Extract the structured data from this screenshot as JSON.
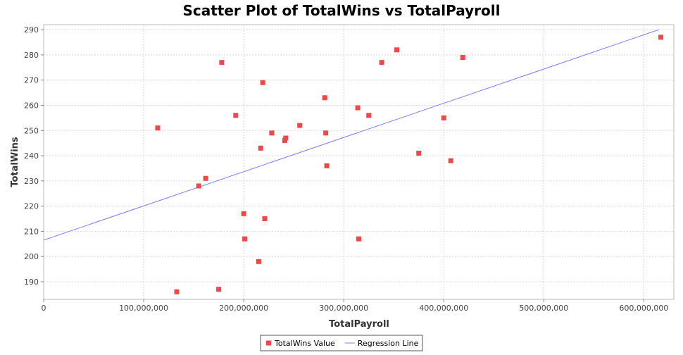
{
  "chart_data": {
    "type": "scatter",
    "title": "Scatter Plot of TotalWins vs TotalPayroll",
    "xlabel": "TotalPayroll",
    "ylabel": "TotalWins",
    "xlim": [
      0,
      630000000
    ],
    "ylim": [
      183,
      292
    ],
    "x_ticks": [
      0,
      100000000,
      200000000,
      300000000,
      400000000,
      500000000,
      600000000
    ],
    "x_tick_labels": [
      "0",
      "100,000,000",
      "200,000,000",
      "300,000,000",
      "400,000,000",
      "500,000,000",
      "600,000,000"
    ],
    "y_ticks": [
      190,
      200,
      210,
      220,
      230,
      240,
      250,
      260,
      270,
      280,
      290
    ],
    "y_tick_labels": [
      "190",
      "200",
      "210",
      "220",
      "230",
      "240",
      "250",
      "260",
      "270",
      "280",
      "290"
    ],
    "grid": true,
    "legend_position": "bottom-center",
    "series": [
      {
        "name": "TotalWins Value",
        "kind": "points",
        "color": "#f04848",
        "points": [
          {
            "x": 114000000,
            "y": 251
          },
          {
            "x": 133000000,
            "y": 186
          },
          {
            "x": 155000000,
            "y": 228
          },
          {
            "x": 162000000,
            "y": 231
          },
          {
            "x": 175000000,
            "y": 187
          },
          {
            "x": 178000000,
            "y": 277
          },
          {
            "x": 192000000,
            "y": 256
          },
          {
            "x": 200000000,
            "y": 217
          },
          {
            "x": 201000000,
            "y": 207
          },
          {
            "x": 215000000,
            "y": 198
          },
          {
            "x": 217000000,
            "y": 243
          },
          {
            "x": 219000000,
            "y": 269
          },
          {
            "x": 221000000,
            "y": 215
          },
          {
            "x": 228000000,
            "y": 249
          },
          {
            "x": 241000000,
            "y": 246
          },
          {
            "x": 242000000,
            "y": 247
          },
          {
            "x": 256000000,
            "y": 252
          },
          {
            "x": 281000000,
            "y": 263
          },
          {
            "x": 282000000,
            "y": 249
          },
          {
            "x": 283000000,
            "y": 236
          },
          {
            "x": 314000000,
            "y": 259
          },
          {
            "x": 315000000,
            "y": 207
          },
          {
            "x": 325000000,
            "y": 256
          },
          {
            "x": 338000000,
            "y": 277
          },
          {
            "x": 353000000,
            "y": 282
          },
          {
            "x": 375000000,
            "y": 241
          },
          {
            "x": 400000000,
            "y": 255
          },
          {
            "x": 407000000,
            "y": 238
          },
          {
            "x": 419000000,
            "y": 279
          },
          {
            "x": 617000000,
            "y": 287
          }
        ]
      },
      {
        "name": "Regression Line",
        "kind": "line",
        "color": "#7b7bff",
        "points": [
          {
            "x": 0,
            "y": 206.5
          },
          {
            "x": 615000000,
            "y": 290
          }
        ]
      }
    ]
  }
}
